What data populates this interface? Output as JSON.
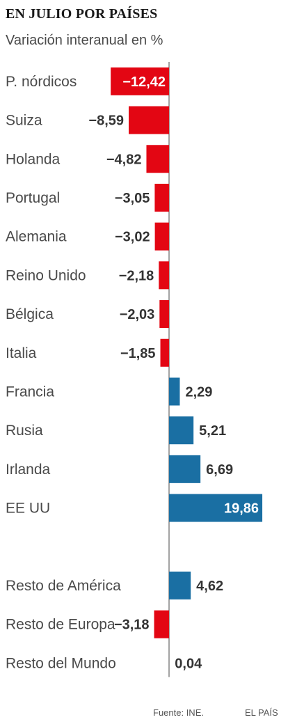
{
  "header": {
    "title": "EN JULIO POR PAÍSES",
    "subtitle": "Variación interanual en %"
  },
  "colors": {
    "negative": "#e30613",
    "positive": "#1a6fa3",
    "axis": "#666666"
  },
  "chart_data": {
    "type": "bar",
    "orientation": "horizontal",
    "title": "EN JULIO POR PAÍSES",
    "subtitle": "Variación interanual en %",
    "categories": [
      "P. nórdicos",
      "Suiza",
      "Holanda",
      "Portugal",
      "Alemania",
      "Reino Unido",
      "Bélgica",
      "Italia",
      "Francia",
      "Rusia",
      "Irlanda",
      "EE UU",
      "",
      "Resto de América",
      "Resto de Europa",
      "Resto del Mundo"
    ],
    "values": [
      -12.42,
      -8.59,
      -4.82,
      -3.05,
      -3.02,
      -2.18,
      -2.03,
      -1.85,
      2.29,
      5.21,
      6.69,
      19.86,
      null,
      4.62,
      -3.18,
      0.04
    ],
    "value_labels": [
      "−12,42",
      "−8,59",
      "−4,82",
      "−3,05",
      "−3,02",
      "−2,18",
      "−2,03",
      "−1,85",
      "2,29",
      "5,21",
      "6,69",
      "19,86",
      "",
      "4,62",
      "−3,18",
      "0,04"
    ],
    "xlabel": "",
    "ylabel": "",
    "grid": false,
    "legend": "none"
  },
  "footer": {
    "source": "Fuente: INE.",
    "brand": "EL PAÍS"
  }
}
